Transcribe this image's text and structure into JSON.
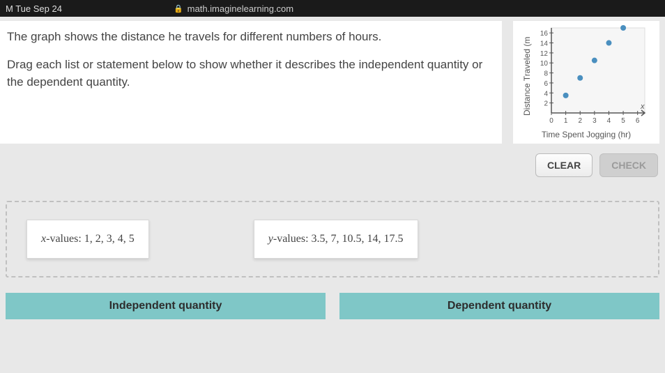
{
  "menubar": {
    "datetime": "M  Tue Sep 24",
    "url": "math.imaginelearning.com"
  },
  "question": {
    "line1": "The graph shows the distance he travels for different numbers of hours.",
    "line2": "Drag each list or statement below to show whether it describes the independent quantity or the dependent quantity."
  },
  "chart": {
    "type": "scatter",
    "y_label": "Distance Traveled (m",
    "x_label": "Time Spent Jogging (hr)",
    "x_ticks": [
      0,
      1,
      2,
      3,
      4,
      5,
      6
    ],
    "y_ticks": [
      2,
      4,
      6,
      8,
      10,
      12,
      14,
      16
    ],
    "xlim": [
      0,
      6.5
    ],
    "ylim": [
      0,
      17
    ],
    "points": [
      [
        1,
        3.5
      ],
      [
        2,
        7
      ],
      [
        3,
        10.5
      ],
      [
        4,
        14
      ],
      [
        5,
        17.5
      ]
    ],
    "point_color": "#4a8fbf",
    "axis_color": "#555555",
    "grid_color": "#dddddd",
    "background": "#f6f6f6",
    "x_var_label": "x"
  },
  "buttons": {
    "clear": "CLEAR",
    "check": "CHECK"
  },
  "chips": {
    "x_prefix": "x",
    "x_rest": "-values: 1, 2, 3, 4, 5",
    "y_prefix": "y",
    "y_rest": "-values: 3.5, 7, 10.5, 14, 17.5"
  },
  "targets": {
    "independent": "Independent quantity",
    "dependent": "Dependent quantity"
  }
}
